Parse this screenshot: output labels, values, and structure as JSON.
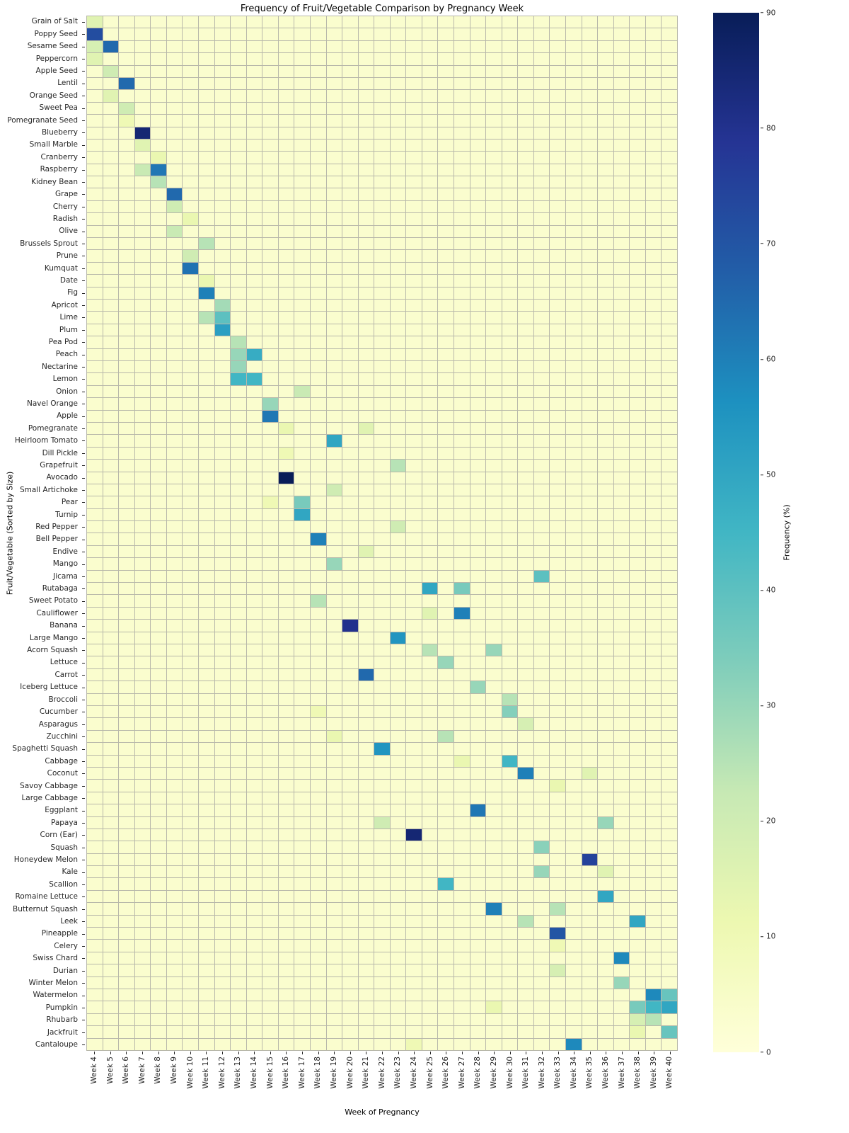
{
  "chart_data": {
    "type": "heatmap",
    "title": "Frequency of Fruit/Vegetable Comparison by Pregnancy Week",
    "xlabel": "Week of Pregnancy",
    "ylabel": "Fruit/Vegetable (Sorted by Size)",
    "colorbar_label": "Frequency (%)",
    "vmin": 0,
    "vmax": 90,
    "colorbar_ticks": [
      0,
      10,
      20,
      30,
      40,
      50,
      60,
      70,
      80,
      90
    ],
    "colormap": "YlGnBu",
    "colormap_stops": [
      "#ffffd9",
      "#edf8b1",
      "#c7e9b4",
      "#7fcdbb",
      "#41b6c4",
      "#1d91c0",
      "#225ea8",
      "#253494",
      "#081d58"
    ],
    "gridline_color": "#b8b8aa",
    "week_start": 4,
    "background_value": 3,
    "x_labels": [
      "Week 4",
      "Week 5",
      "Week 6",
      "Week 7",
      "Week 8",
      "Week 9",
      "Week 10",
      "Week 11",
      "Week 12",
      "Week 13",
      "Week 14",
      "Week 15",
      "Week 16",
      "Week 17",
      "Week 18",
      "Week 19",
      "Week 20",
      "Week 21",
      "Week 22",
      "Week 23",
      "Week 24",
      "Week 25",
      "Week 26",
      "Week 27",
      "Week 28",
      "Week 29",
      "Week 30",
      "Week 31",
      "Week 32",
      "Week 33",
      "Week 34",
      "Week 35",
      "Week 36",
      "Week 37",
      "Week 38",
      "Week 39",
      "Week 40"
    ],
    "y_labels": [
      "Grain of Salt",
      "Poppy Seed",
      "Sesame Seed",
      "Peppercorn",
      "Apple Seed",
      "Lentil",
      "Orange Seed",
      "Sweet Pea",
      "Pomegranate Seed",
      "Blueberry",
      "Small Marble",
      "Cranberry",
      "Raspberry",
      "Kidney Bean",
      "Grape",
      "Cherry",
      "Radish",
      "Olive",
      "Brussels Sprout",
      "Prune",
      "Kumquat",
      "Date",
      "Fig",
      "Apricot",
      "Lime",
      "Plum",
      "Pea Pod",
      "Peach",
      "Nectarine",
      "Lemon",
      "Onion",
      "Navel Orange",
      "Apple",
      "Pomegranate",
      "Heirloom Tomato",
      "Dill Pickle",
      "Grapefruit",
      "Avocado",
      "Small Artichoke",
      "Pear",
      "Turnip",
      "Red Pepper",
      "Bell Pepper",
      "Endive",
      "Mango",
      "Jicama",
      "Rutabaga",
      "Sweet Potato",
      "Cauliflower",
      "Banana",
      "Large Mango",
      "Acorn Squash",
      "Lettuce",
      "Carrot",
      "Iceberg Lettuce",
      "Broccoli",
      "Cucumber",
      "Asparagus",
      "Zucchini",
      "Spaghetti Squash",
      "Cabbage",
      "Coconut",
      "Savoy Cabbage",
      "Large Cabbage",
      "Eggplant",
      "Papaya",
      "Corn (Ear)",
      "Squash",
      "Honeydew Melon",
      "Kale",
      "Scallion",
      "Romaine Lettuce",
      "Butternut Squash",
      "Leek",
      "Pineapple",
      "Celery",
      "Swiss Chard",
      "Durian",
      "Winter Melon",
      "Watermelon",
      "Pumpkin",
      "Rhubarb",
      "Jackfruit",
      "Cantaloupe"
    ],
    "cells": [
      [
        "Grain of Salt",
        4,
        15
      ],
      [
        "Poppy Seed",
        4,
        72
      ],
      [
        "Sesame Seed",
        4,
        18
      ],
      [
        "Sesame Seed",
        5,
        65
      ],
      [
        "Peppercorn",
        4,
        15
      ],
      [
        "Apple Seed",
        5,
        20
      ],
      [
        "Lentil",
        6,
        65
      ],
      [
        "Orange Seed",
        5,
        15
      ],
      [
        "Sweet Pea",
        6,
        20
      ],
      [
        "Pomegranate Seed",
        6,
        10
      ],
      [
        "Blueberry",
        7,
        85
      ],
      [
        "Small Marble",
        7,
        15
      ],
      [
        "Cranberry",
        8,
        12
      ],
      [
        "Raspberry",
        7,
        22
      ],
      [
        "Raspberry",
        8,
        62
      ],
      [
        "Kidney Bean",
        8,
        25
      ],
      [
        "Grape",
        9,
        65
      ],
      [
        "Cherry",
        9,
        20
      ],
      [
        "Radish",
        10,
        12
      ],
      [
        "Olive",
        9,
        22
      ],
      [
        "Brussels Sprout",
        11,
        25
      ],
      [
        "Prune",
        10,
        20
      ],
      [
        "Kumquat",
        10,
        63
      ],
      [
        "Date",
        11,
        12
      ],
      [
        "Fig",
        11,
        60
      ],
      [
        "Apricot",
        12,
        28
      ],
      [
        "Lime",
        11,
        25
      ],
      [
        "Lime",
        12,
        40
      ],
      [
        "Plum",
        12,
        52
      ],
      [
        "Pea Pod",
        13,
        25
      ],
      [
        "Peach",
        13,
        30
      ],
      [
        "Peach",
        14,
        48
      ],
      [
        "Nectarine",
        13,
        30
      ],
      [
        "Lemon",
        13,
        45
      ],
      [
        "Lemon",
        14,
        45
      ],
      [
        "Onion",
        17,
        22
      ],
      [
        "Navel Orange",
        15,
        30
      ],
      [
        "Apple",
        15,
        62
      ],
      [
        "Pomegranate",
        16,
        12
      ],
      [
        "Pomegranate",
        21,
        15
      ],
      [
        "Heirloom Tomato",
        19,
        50
      ],
      [
        "Dill Pickle",
        16,
        10
      ],
      [
        "Grapefruit",
        23,
        25
      ],
      [
        "Avocado",
        16,
        90
      ],
      [
        "Small Artichoke",
        19,
        20
      ],
      [
        "Pear",
        15,
        10
      ],
      [
        "Pear",
        17,
        35
      ],
      [
        "Turnip",
        17,
        50
      ],
      [
        "Red Pepper",
        23,
        20
      ],
      [
        "Bell Pepper",
        18,
        60
      ],
      [
        "Endive",
        21,
        15
      ],
      [
        "Mango",
        19,
        30
      ],
      [
        "Jicama",
        32,
        40
      ],
      [
        "Rutabaga",
        25,
        50
      ],
      [
        "Rutabaga",
        27,
        35
      ],
      [
        "Sweet Potato",
        18,
        25
      ],
      [
        "Cauliflower",
        25,
        15
      ],
      [
        "Cauliflower",
        27,
        60
      ],
      [
        "Banana",
        20,
        80
      ],
      [
        "Large Mango",
        23,
        55
      ],
      [
        "Acorn Squash",
        25,
        25
      ],
      [
        "Acorn Squash",
        29,
        30
      ],
      [
        "Lettuce",
        26,
        30
      ],
      [
        "Carrot",
        21,
        65
      ],
      [
        "Iceberg Lettuce",
        28,
        30
      ],
      [
        "Broccoli",
        30,
        25
      ],
      [
        "Cucumber",
        18,
        10
      ],
      [
        "Cucumber",
        30,
        33
      ],
      [
        "Asparagus",
        31,
        18
      ],
      [
        "Zucchini",
        19,
        12
      ],
      [
        "Zucchini",
        26,
        25
      ],
      [
        "Spaghetti Squash",
        22,
        55
      ],
      [
        "Cabbage",
        27,
        12
      ],
      [
        "Cabbage",
        30,
        45
      ],
      [
        "Coconut",
        31,
        60
      ],
      [
        "Coconut",
        35,
        15
      ],
      [
        "Savoy Cabbage",
        33,
        12
      ],
      [
        "Eggplant",
        28,
        62
      ],
      [
        "Papaya",
        22,
        20
      ],
      [
        "Papaya",
        36,
        30
      ],
      [
        "Corn (Ear)",
        24,
        85
      ],
      [
        "Squash",
        32,
        32
      ],
      [
        "Honeydew Melon",
        35,
        75
      ],
      [
        "Kale",
        32,
        30
      ],
      [
        "Kale",
        36,
        15
      ],
      [
        "Scallion",
        26,
        45
      ],
      [
        "Romaine Lettuce",
        36,
        50
      ],
      [
        "Butternut Squash",
        29,
        60
      ],
      [
        "Butternut Squash",
        33,
        25
      ],
      [
        "Leek",
        31,
        25
      ],
      [
        "Leek",
        38,
        50
      ],
      [
        "Pineapple",
        33,
        70
      ],
      [
        "Celery",
        33,
        10
      ],
      [
        "Swiss Chard",
        37,
        58
      ],
      [
        "Durian",
        33,
        18
      ],
      [
        "Winter Melon",
        37,
        30
      ],
      [
        "Watermelon",
        39,
        58
      ],
      [
        "Watermelon",
        40,
        38
      ],
      [
        "Pumpkin",
        29,
        12
      ],
      [
        "Pumpkin",
        38,
        35
      ],
      [
        "Pumpkin",
        39,
        45
      ],
      [
        "Pumpkin",
        40,
        50
      ],
      [
        "Rhubarb",
        38,
        18
      ],
      [
        "Rhubarb",
        39,
        25
      ],
      [
        "Jackfruit",
        38,
        12
      ],
      [
        "Jackfruit",
        40,
        38
      ],
      [
        "Cantaloupe",
        24,
        10
      ],
      [
        "Cantaloupe",
        34,
        58
      ]
    ]
  }
}
